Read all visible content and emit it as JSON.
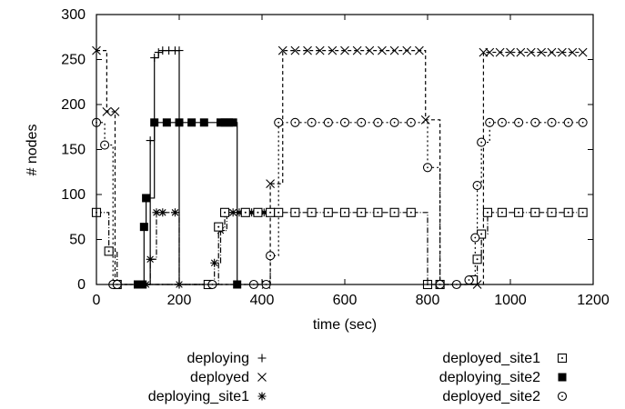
{
  "chart_data": {
    "type": "line",
    "title": "",
    "xlabel": "time (sec)",
    "ylabel": "# nodes",
    "xlim": [
      0,
      1200
    ],
    "ylim": [
      0,
      300
    ],
    "x_ticks": [
      0,
      200,
      400,
      600,
      800,
      1000,
      1200
    ],
    "y_ticks": [
      0,
      50,
      100,
      150,
      200,
      250,
      300
    ],
    "x_tick_labels": [
      "0",
      "200",
      "400",
      "600",
      "800",
      "1000",
      "1200"
    ],
    "y_tick_labels": [
      "0",
      "50",
      "100",
      "150",
      "200",
      "250",
      "300"
    ],
    "grid": false,
    "legend_position": "bottom",
    "series": [
      {
        "name": "deploying",
        "marker": "plus",
        "dash": "solid",
        "points": [
          [
            120,
            0
          ],
          [
            130,
            160
          ],
          [
            140,
            252
          ],
          [
            150,
            258
          ],
          [
            160,
            260
          ],
          [
            175,
            260
          ],
          [
            190,
            260
          ],
          [
            200,
            260
          ],
          [
            200,
            0
          ]
        ]
      },
      {
        "name": "deployed",
        "marker": "x",
        "dash": "4,3",
        "points": [
          [
            0,
            260
          ],
          [
            25,
            192
          ],
          [
            45,
            192
          ],
          [
            45,
            0
          ],
          [
            410,
            0
          ],
          [
            420,
            112
          ],
          [
            450,
            260
          ],
          [
            480,
            260
          ],
          [
            510,
            260
          ],
          [
            540,
            260
          ],
          [
            570,
            260
          ],
          [
            600,
            260
          ],
          [
            630,
            260
          ],
          [
            660,
            260
          ],
          [
            690,
            260
          ],
          [
            720,
            260
          ],
          [
            750,
            260
          ],
          [
            780,
            260
          ],
          [
            795,
            183
          ],
          [
            830,
            0
          ],
          [
            920,
            0
          ],
          [
            935,
            258
          ],
          [
            950,
            258
          ],
          [
            975,
            258
          ],
          [
            1000,
            258
          ],
          [
            1025,
            258
          ],
          [
            1050,
            258
          ],
          [
            1075,
            258
          ],
          [
            1100,
            258
          ],
          [
            1125,
            258
          ],
          [
            1150,
            258
          ],
          [
            1175,
            258
          ]
        ]
      },
      {
        "name": "deploying_site1",
        "marker": "star",
        "dash": "6,2,1,2",
        "points": [
          [
            120,
            0
          ],
          [
            130,
            28
          ],
          [
            145,
            80
          ],
          [
            160,
            80
          ],
          [
            190,
            80
          ],
          [
            200,
            0
          ],
          [
            280,
            0
          ],
          [
            285,
            24
          ],
          [
            300,
            60
          ],
          [
            315,
            80
          ],
          [
            330,
            80
          ],
          [
            345,
            80
          ],
          [
            360,
            80
          ],
          [
            375,
            80
          ],
          [
            390,
            80
          ],
          [
            405,
            80
          ]
        ]
      },
      {
        "name": "deployed_site1",
        "marker": "square-dot",
        "dash": "6,2,1,2",
        "points": [
          [
            0,
            80
          ],
          [
            30,
            37
          ],
          [
            50,
            0
          ],
          [
            270,
            0
          ],
          [
            295,
            64
          ],
          [
            310,
            80
          ],
          [
            360,
            80
          ],
          [
            390,
            80
          ],
          [
            420,
            80
          ],
          [
            440,
            80
          ],
          [
            480,
            80
          ],
          [
            520,
            80
          ],
          [
            560,
            80
          ],
          [
            600,
            80
          ],
          [
            640,
            80
          ],
          [
            680,
            80
          ],
          [
            720,
            80
          ],
          [
            760,
            80
          ],
          [
            800,
            0
          ],
          [
            830,
            0
          ],
          [
            910,
            5
          ],
          [
            920,
            28
          ],
          [
            930,
            56
          ],
          [
            945,
            80
          ],
          [
            980,
            80
          ],
          [
            1020,
            80
          ],
          [
            1060,
            80
          ],
          [
            1100,
            80
          ],
          [
            1140,
            80
          ],
          [
            1175,
            80
          ]
        ]
      },
      {
        "name": "deploying_site2",
        "marker": "filled-square",
        "dash": "solid",
        "points": [
          [
            100,
            0
          ],
          [
            110,
            0
          ],
          [
            115,
            64
          ],
          [
            120,
            96
          ],
          [
            140,
            180
          ],
          [
            170,
            180
          ],
          [
            200,
            180
          ],
          [
            230,
            180
          ],
          [
            260,
            180
          ],
          [
            300,
            180
          ],
          [
            310,
            180
          ],
          [
            320,
            180
          ],
          [
            330,
            180
          ],
          [
            340,
            0
          ]
        ]
      },
      {
        "name": "deployed_site2",
        "marker": "circle",
        "dash": "2,3",
        "points": [
          [
            0,
            180
          ],
          [
            20,
            155
          ],
          [
            40,
            0
          ],
          [
            50,
            0
          ],
          [
            280,
            0
          ],
          [
            380,
            0
          ],
          [
            410,
            0
          ],
          [
            420,
            32
          ],
          [
            440,
            180
          ],
          [
            480,
            180
          ],
          [
            520,
            180
          ],
          [
            560,
            180
          ],
          [
            600,
            180
          ],
          [
            640,
            180
          ],
          [
            680,
            180
          ],
          [
            720,
            180
          ],
          [
            760,
            180
          ],
          [
            800,
            130
          ],
          [
            830,
            0
          ],
          [
            870,
            0
          ],
          [
            900,
            5
          ],
          [
            915,
            52
          ],
          [
            920,
            110
          ],
          [
            930,
            158
          ],
          [
            950,
            180
          ],
          [
            980,
            180
          ],
          [
            1020,
            180
          ],
          [
            1060,
            180
          ],
          [
            1100,
            180
          ],
          [
            1140,
            180
          ],
          [
            1175,
            180
          ]
        ]
      }
    ]
  }
}
